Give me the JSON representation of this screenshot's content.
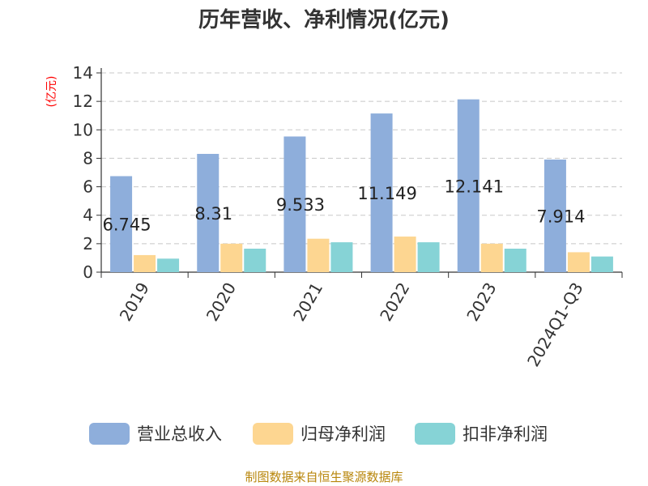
{
  "chart_data": {
    "type": "bar",
    "title": "历年营收、净利情况(亿元)",
    "ylabel": "(亿元)",
    "xlabel": "",
    "categories": [
      "2019",
      "2020",
      "2021",
      "2022",
      "2023",
      "2024Q1-Q3"
    ],
    "ylim": [
      0,
      14
    ],
    "yticks": [
      0,
      2,
      4,
      6,
      8,
      10,
      12,
      14
    ],
    "grid": true,
    "legend_position": "bottom",
    "series": [
      {
        "name": "营业总收入",
        "color": "#8eaedb",
        "values": [
          6.745,
          8.31,
          9.533,
          11.149,
          12.141,
          7.914
        ],
        "labels": [
          "6.745",
          "8.31",
          "9.533",
          "11.149",
          "12.141",
          "7.914"
        ]
      },
      {
        "name": "归母净利润",
        "color": "#fdd691",
        "values": [
          1.2,
          2.0,
          2.35,
          2.5,
          2.0,
          1.4
        ]
      },
      {
        "name": "扣非净利润",
        "color": "#86d3d6",
        "values": [
          0.95,
          1.65,
          2.1,
          2.1,
          1.65,
          1.1
        ]
      }
    ]
  },
  "source": "制图数据来自恒生聚源数据库"
}
